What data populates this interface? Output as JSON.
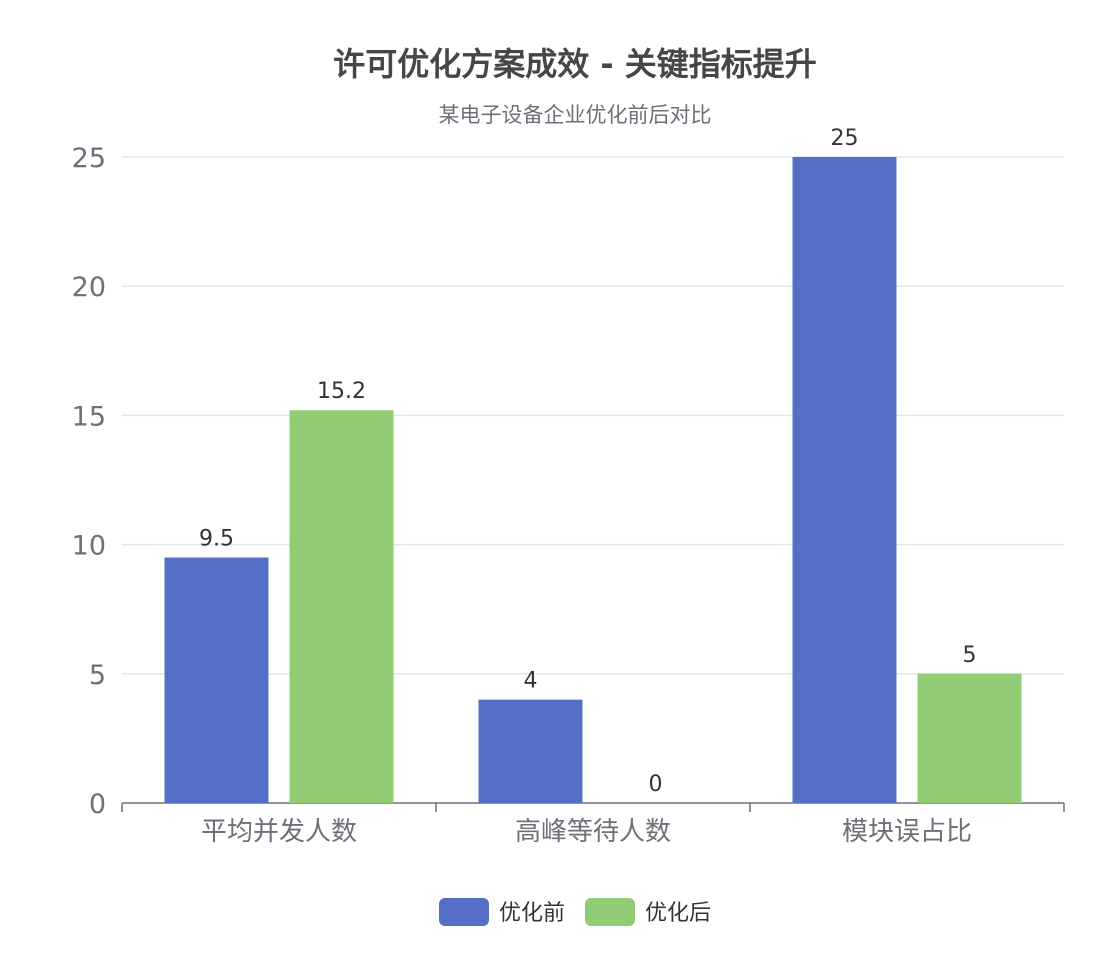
{
  "chart_data": {
    "type": "bar",
    "title": "许可优化方案成效 - 关键指标提升",
    "subtitle": "某电子设备企业优化前后对比",
    "categories": [
      "平均并发人数",
      "高峰等待人数",
      "模块误占比"
    ],
    "series": [
      {
        "name": "优化前",
        "values": [
          9.5,
          4,
          25
        ],
        "color": "#5470c6"
      },
      {
        "name": "优化后",
        "values": [
          15.2,
          0,
          5
        ],
        "color": "#91cc75"
      }
    ],
    "ylim": [
      0,
      25
    ],
    "yticks": [
      0,
      5,
      10,
      15,
      20,
      25
    ],
    "grid": true,
    "legend_position": "bottom-center",
    "data_labels": true
  }
}
